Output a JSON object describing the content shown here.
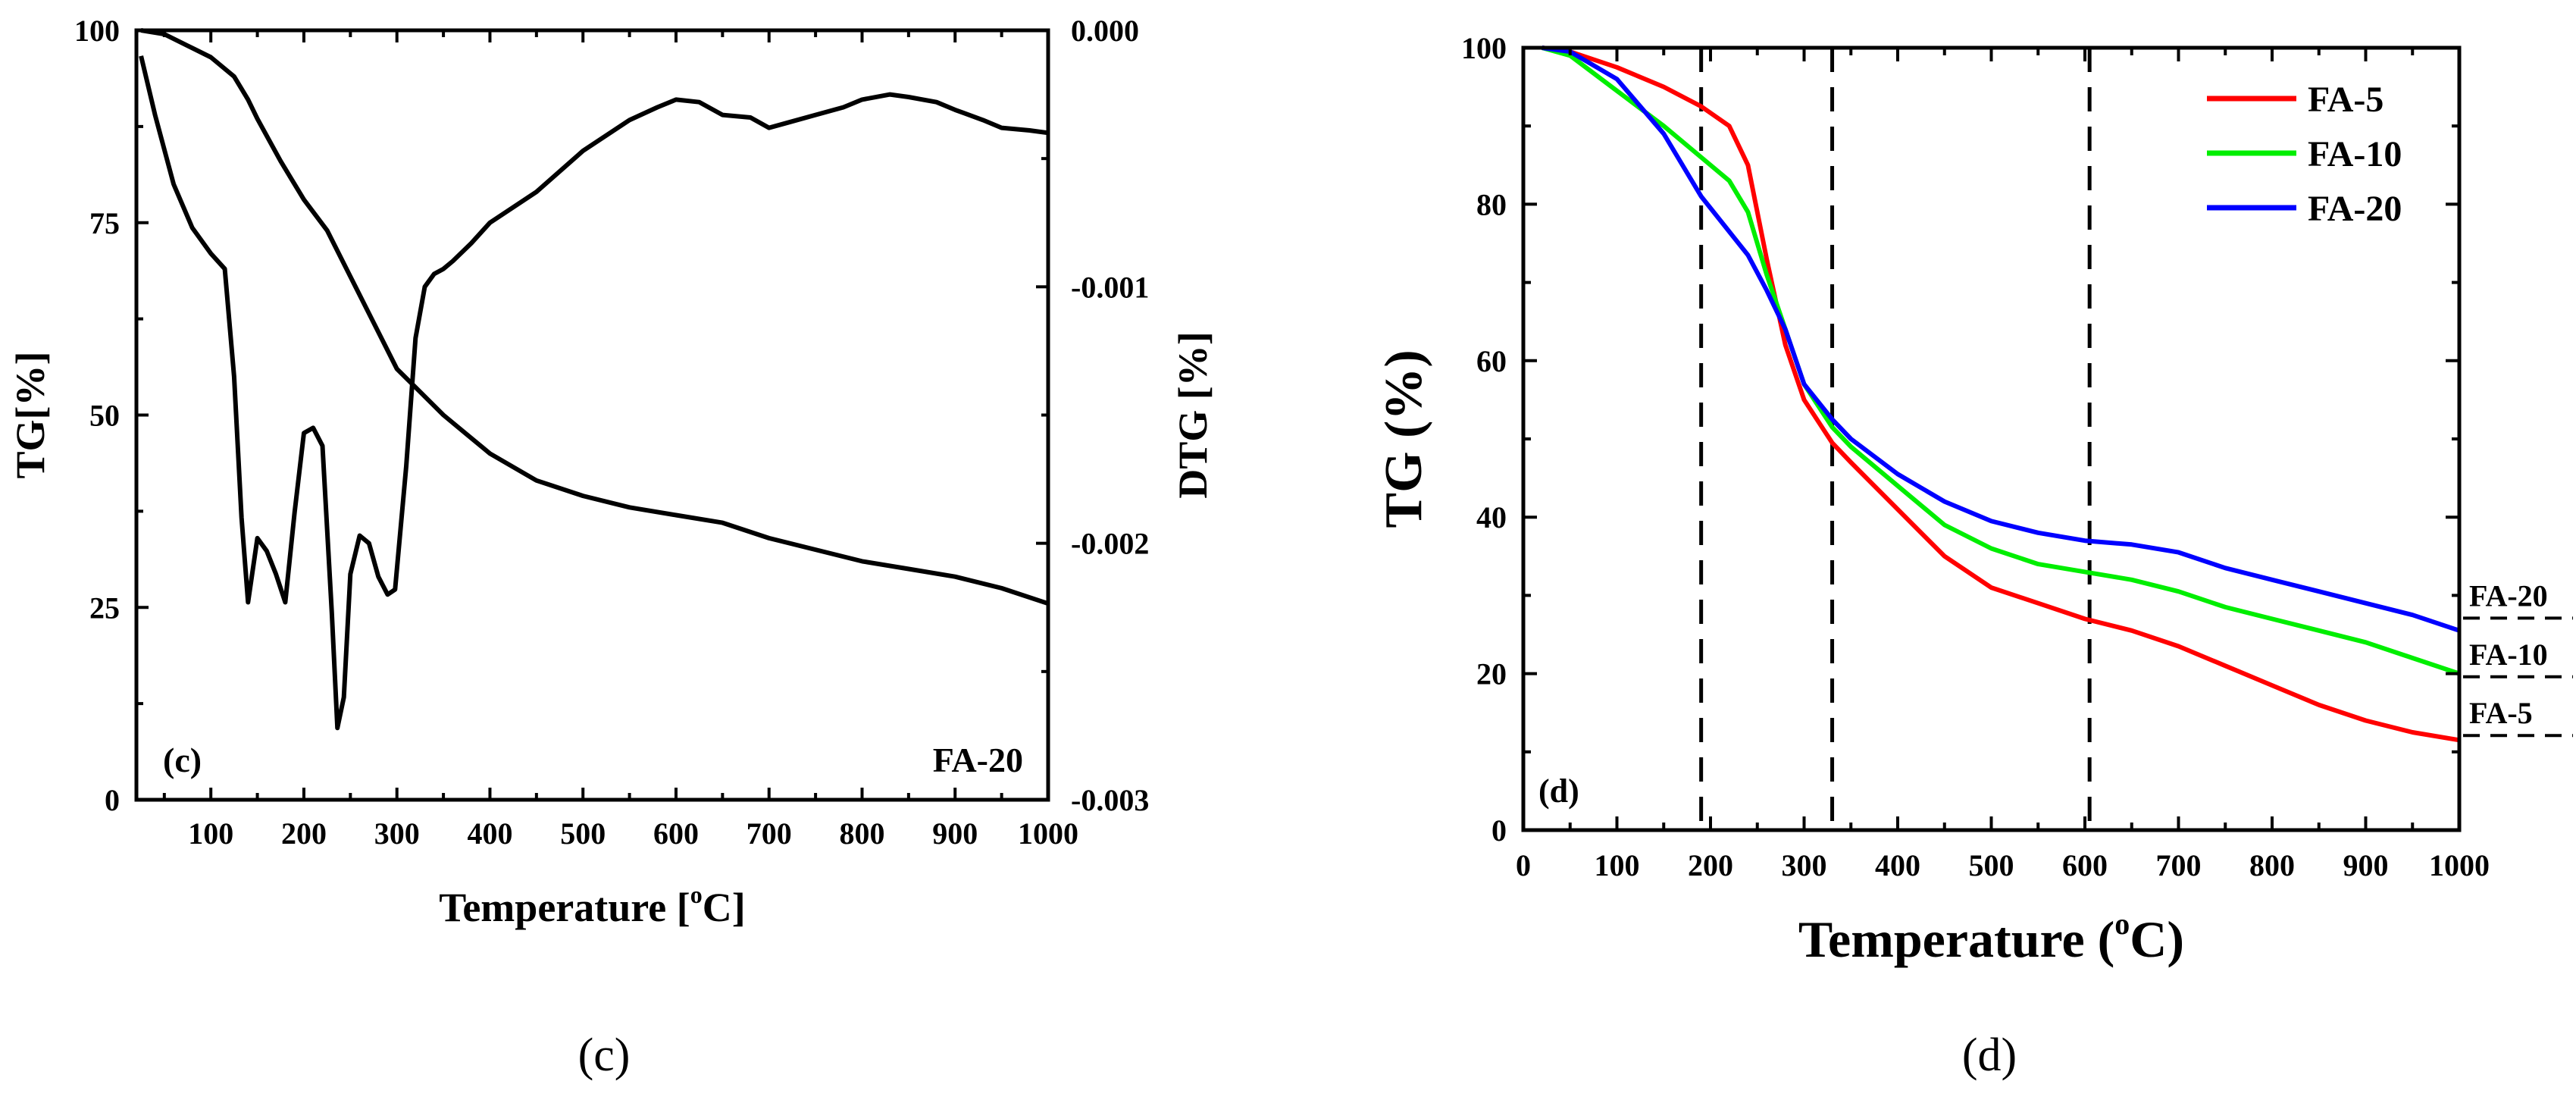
{
  "chart_data": [
    {
      "id": "c",
      "type": "line",
      "caption": "(c)",
      "panel_label": "(c)",
      "annotation": "FA-20",
      "xlabel_main": "Temperature [",
      "xlabel_sup": "o",
      "xlabel_tail": "C]",
      "ylabel_left": "TG[%]",
      "ylabel_right": "DTG [%]",
      "xlim": [
        20,
        1000
      ],
      "ylim_left": [
        0,
        100
      ],
      "ylim_right": [
        -0.003,
        0.0
      ],
      "x_ticks": [
        100,
        200,
        300,
        400,
        500,
        600,
        700,
        800,
        900,
        1000
      ],
      "x_tick_labels": [
        "100",
        "200",
        "300",
        "400",
        "500",
        "600",
        "700",
        "800",
        "900",
        "1000"
      ],
      "y_left_ticks": [
        0,
        25,
        50,
        75,
        100
      ],
      "y_left_tick_labels": [
        "0",
        "25",
        "50",
        "75",
        "100"
      ],
      "y_right_ticks": [
        0.0,
        -0.001,
        -0.002,
        -0.003
      ],
      "y_right_tick_labels": [
        "0.000",
        "-0.001",
        "-0.002",
        "-0.003"
      ],
      "series": [
        {
          "name": "TG",
          "axis": "left",
          "color": "#000000",
          "x": [
            25,
            50,
            75,
            100,
            125,
            140,
            150,
            175,
            200,
            225,
            250,
            275,
            300,
            325,
            350,
            375,
            400,
            450,
            500,
            550,
            600,
            650,
            700,
            750,
            800,
            850,
            900,
            950,
            1000
          ],
          "y": [
            100,
            99.5,
            98,
            96.5,
            94,
            91,
            88.5,
            83,
            78,
            74,
            68,
            62,
            56,
            53,
            50,
            47.5,
            45,
            41.5,
            39.5,
            38,
            37,
            36,
            34,
            32.5,
            31,
            30,
            29,
            27.5,
            25.5
          ]
        },
        {
          "name": "DTG",
          "axis": "right",
          "color": "#000000",
          "x": [
            25,
            40,
            60,
            80,
            100,
            115,
            125,
            133,
            140,
            150,
            160,
            170,
            180,
            190,
            200,
            210,
            220,
            230,
            236,
            243,
            250,
            260,
            270,
            280,
            290,
            298,
            310,
            320,
            330,
            340,
            350,
            360,
            380,
            400,
            450,
            500,
            550,
            580,
            600,
            625,
            650,
            680,
            700,
            720,
            750,
            780,
            800,
            830,
            850,
            880,
            900,
            930,
            950,
            980,
            1000
          ],
          "y": [
            -0.0001,
            -0.00033,
            -0.0006,
            -0.00077,
            -0.00087,
            -0.00093,
            -0.00135,
            -0.0019,
            -0.00223,
            -0.00198,
            -0.00203,
            -0.00212,
            -0.00223,
            -0.00188,
            -0.00157,
            -0.00155,
            -0.00162,
            -0.00227,
            -0.00272,
            -0.0026,
            -0.00212,
            -0.00197,
            -0.002,
            -0.00213,
            -0.0022,
            -0.00218,
            -0.0017,
            -0.0012,
            -0.001,
            -0.00095,
            -0.00093,
            -0.0009,
            -0.00083,
            -0.00075,
            -0.00063,
            -0.00047,
            -0.00035,
            -0.0003,
            -0.00027,
            -0.00028,
            -0.00033,
            -0.00034,
            -0.00038,
            -0.00036,
            -0.00033,
            -0.0003,
            -0.00027,
            -0.00025,
            -0.00026,
            -0.00028,
            -0.00031,
            -0.00035,
            -0.00038,
            -0.00039,
            -0.0004
          ]
        }
      ]
    },
    {
      "id": "d",
      "type": "line",
      "caption": "(d)",
      "panel_label": "(d)",
      "xlabel_main": "Temperature (",
      "xlabel_sup": "o",
      "xlabel_tail": "C)",
      "ylabel": "TG (%)",
      "xlim": [
        0,
        1000
      ],
      "ylim": [
        0,
        100
      ],
      "x_ticks": [
        0,
        100,
        200,
        300,
        400,
        500,
        600,
        700,
        800,
        900,
        1000
      ],
      "x_tick_labels": [
        "0",
        "100",
        "200",
        "300",
        "400",
        "500",
        "600",
        "700",
        "800",
        "900",
        "1000"
      ],
      "y_ticks": [
        0,
        20,
        40,
        60,
        80,
        100
      ],
      "y_tick_labels": [
        "0",
        "20",
        "40",
        "60",
        "80",
        "100"
      ],
      "vlines": [
        190,
        330,
        605
      ],
      "legend": {
        "position": "top-right"
      },
      "end_labels": [
        {
          "text": "FA-20",
          "value": 30
        },
        {
          "text": "FA-10",
          "value": 22.5
        },
        {
          "text": "FA-5",
          "value": 15
        }
      ],
      "series": [
        {
          "name": "FA-5",
          "color": "#ff0000",
          "x": [
            20,
            50,
            100,
            150,
            190,
            220,
            240,
            260,
            280,
            300,
            330,
            350,
            400,
            450,
            500,
            550,
            600,
            650,
            700,
            750,
            800,
            850,
            900,
            950,
            1000
          ],
          "y": [
            100,
            99.5,
            97.5,
            95,
            92.5,
            90,
            85,
            73,
            62,
            55,
            49.5,
            47,
            41,
            35,
            31,
            29,
            27,
            25.5,
            23.5,
            21,
            18.5,
            16,
            14,
            12.5,
            11.5
          ]
        },
        {
          "name": "FA-10",
          "color": "#00ee00",
          "x": [
            20,
            50,
            100,
            150,
            190,
            220,
            240,
            260,
            280,
            300,
            330,
            350,
            400,
            450,
            500,
            550,
            600,
            650,
            700,
            750,
            800,
            850,
            900,
            950,
            1000
          ],
          "y": [
            100,
            99,
            94.5,
            90,
            86,
            83,
            79,
            71,
            64,
            57,
            51.5,
            49,
            44,
            39,
            36,
            34,
            33,
            32,
            30.5,
            28.5,
            27,
            25.5,
            24,
            22,
            20
          ]
        },
        {
          "name": "FA-20",
          "color": "#0000ff",
          "x": [
            20,
            50,
            100,
            150,
            190,
            220,
            240,
            260,
            280,
            300,
            330,
            350,
            400,
            450,
            500,
            550,
            600,
            650,
            700,
            750,
            800,
            850,
            900,
            950,
            1000
          ],
          "y": [
            100,
            99.5,
            96,
            89,
            81,
            76.5,
            73.5,
            69,
            64,
            57,
            52.5,
            50,
            45.5,
            42,
            39.5,
            38,
            37,
            36.5,
            35.5,
            33.5,
            32,
            30.5,
            29,
            27.5,
            25.5
          ]
        }
      ]
    }
  ]
}
